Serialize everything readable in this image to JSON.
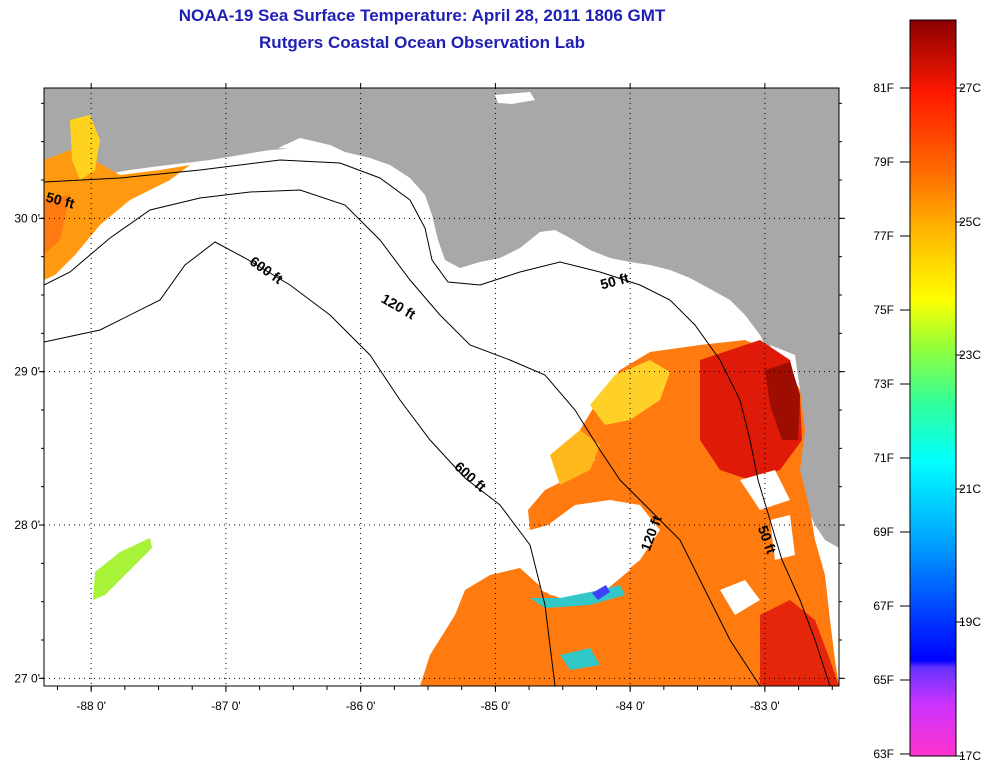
{
  "title": {
    "line1": "NOAA-19 Sea Surface Temperature:  April 28, 2011 1806 GMT",
    "line2": "Rutgers Coastal Ocean Observation Lab"
  },
  "map": {
    "lon_range": [
      -88.35,
      -82.45
    ],
    "lat_range": [
      26.95,
      30.85
    ],
    "lon_ticks": [
      {
        "value": -88,
        "label": "-88 0'"
      },
      {
        "value": -87,
        "label": "-87 0'"
      },
      {
        "value": -86,
        "label": "-86 0'"
      },
      {
        "value": -85,
        "label": "-85 0'"
      },
      {
        "value": -84,
        "label": "-84 0'"
      },
      {
        "value": -83,
        "label": "-83 0'"
      }
    ],
    "lat_ticks": [
      {
        "value": 30,
        "label": "30 0'"
      },
      {
        "value": 29,
        "label": "29 0'"
      },
      {
        "value": 28,
        "label": "28 0'"
      },
      {
        "value": 27,
        "label": "27 0'"
      }
    ],
    "land_color": "#a8a8a8",
    "no_data_color": "#ffffff",
    "contour_labels": [
      "50 ft",
      "600 ft",
      "120 ft",
      "50 ft",
      "600 ft",
      "120 ft",
      "50 ft"
    ]
  },
  "colorbar": {
    "colors": [
      "#ff33cc",
      "#9933ff",
      "#0000ff",
      "#00a0ff",
      "#00ffff",
      "#33ff99",
      "#99ff33",
      "#ffff00",
      "#ffb000",
      "#ff6600",
      "#ff1a00",
      "#8b0000"
    ],
    "f_labels": [
      "81F",
      "79F",
      "77F",
      "75F",
      "73F",
      "71F",
      "69F",
      "67F",
      "65F",
      "63F"
    ],
    "c_labels": [
      "27C",
      "25C",
      "23C",
      "21C",
      "19C",
      "17C"
    ]
  }
}
